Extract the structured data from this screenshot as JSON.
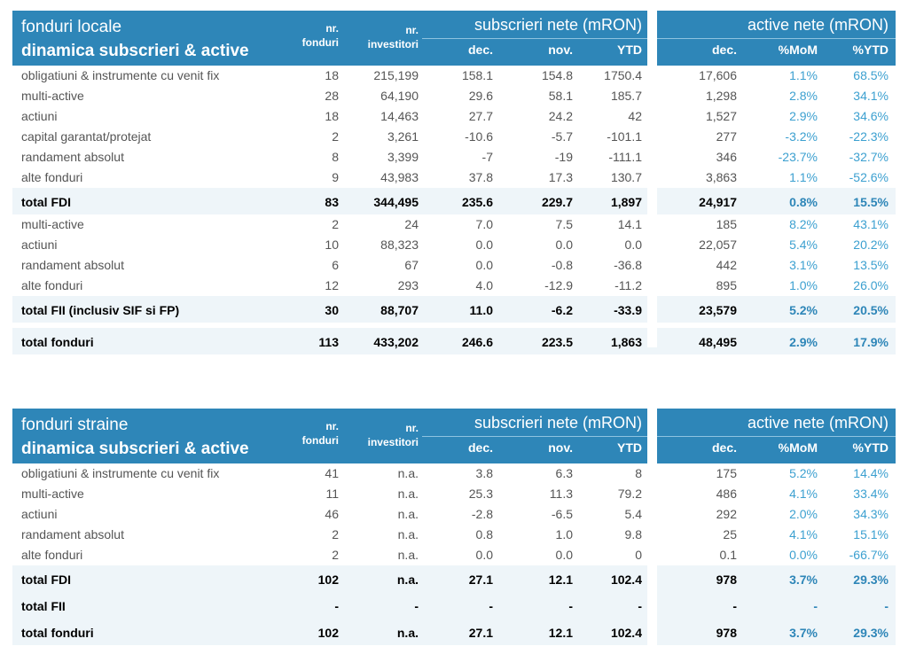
{
  "tables": [
    {
      "title1": "fonduri locale",
      "title2": "dinamica subscrieri & active",
      "col_nr_fonduri": [
        "nr.",
        "fonduri"
      ],
      "col_nr_investitori": [
        "nr.",
        "investitori"
      ],
      "group_subscrieri": "subscrieri nete (mRON)",
      "group_active": "active nete (mRON)",
      "sub_cols": [
        "dec.",
        "nov.",
        "YTD",
        "dec.",
        "%MoM",
        "%YTD"
      ],
      "rows": [
        {
          "label": "obligatiuni & instrumente cu venit fix",
          "v": [
            "18",
            "215,199",
            "158.1",
            "154.8",
            "1750.4",
            "17,606",
            "1.1%",
            "68.5%"
          ]
        },
        {
          "label": "multi-active",
          "v": [
            "28",
            "64,190",
            "29.6",
            "58.1",
            "185.7",
            "1,298",
            "2.8%",
            "34.1%"
          ]
        },
        {
          "label": "actiuni",
          "v": [
            "18",
            "14,463",
            "27.7",
            "24.2",
            "42",
            "1,527",
            "2.9%",
            "34.6%"
          ]
        },
        {
          "label": "capital garantat/protejat",
          "v": [
            "2",
            "3,261",
            "-10.6",
            "-5.7",
            "-101.1",
            "277",
            "-3.2%",
            "-22.3%"
          ]
        },
        {
          "label": "randament absolut",
          "v": [
            "8",
            "3,399",
            "-7",
            "-19",
            "-111.1",
            "346",
            "-23.7%",
            "-32.7%"
          ]
        },
        {
          "label": "alte fonduri",
          "v": [
            "9",
            "43,983",
            "37.8",
            "17.3",
            "130.7",
            "3,863",
            "1.1%",
            "-52.6%"
          ]
        },
        {
          "label": "total FDI",
          "total": true,
          "v": [
            "83",
            "344,495",
            "235.6",
            "229.7",
            "1,897",
            "24,917",
            "0.8%",
            "15.5%"
          ]
        },
        {
          "label": "multi-active",
          "v": [
            "2",
            "24",
            "7.0",
            "7.5",
            "14.1",
            "185",
            "8.2%",
            "43.1%"
          ]
        },
        {
          "label": "actiuni",
          "v": [
            "10",
            "88,323",
            "0.0",
            "0.0",
            "0.0",
            "22,057",
            "5.4%",
            "20.2%"
          ]
        },
        {
          "label": "randament absolut",
          "v": [
            "6",
            "67",
            "0.0",
            "-0.8",
            "-36.8",
            "442",
            "3.1%",
            "13.5%"
          ]
        },
        {
          "label": "alte fonduri",
          "v": [
            "12",
            "293",
            "4.0",
            "-12.9",
            "-11.2",
            "895",
            "1.0%",
            "26.0%"
          ]
        },
        {
          "label": "total FII (inclusiv SIF si FP)",
          "total": true,
          "v": [
            "30",
            "88,707",
            "11.0",
            "-6.2",
            "-33.9",
            "23,579",
            "5.2%",
            "20.5%"
          ]
        },
        {
          "label": "total fonduri",
          "total": true,
          "gap": true,
          "v": [
            "113",
            "433,202",
            "246.6",
            "223.5",
            "1,863",
            "48,495",
            "2.9%",
            "17.9%"
          ]
        }
      ]
    },
    {
      "title1": "fonduri straine",
      "title2": "dinamica subscrieri & active",
      "col_nr_fonduri": [
        "nr.",
        "fonduri"
      ],
      "col_nr_investitori": [
        "nr.",
        "investitori"
      ],
      "group_subscrieri": "subscrieri nete (mRON)",
      "group_active": "active nete (mRON)",
      "sub_cols": [
        "dec.",
        "nov.",
        "YTD",
        "dec.",
        "%MoM",
        "%YTD"
      ],
      "rows": [
        {
          "label": "obligatiuni & instrumente cu venit fix",
          "v": [
            "41",
            "n.a.",
            "3.8",
            "6.3",
            "8",
            "175",
            "5.2%",
            "14.4%"
          ]
        },
        {
          "label": "multi-active",
          "v": [
            "11",
            "n.a.",
            "25.3",
            "11.3",
            "79.2",
            "486",
            "4.1%",
            "33.4%"
          ]
        },
        {
          "label": "actiuni",
          "v": [
            "46",
            "n.a.",
            "-2.8",
            "-6.5",
            "5.4",
            "292",
            "2.0%",
            "34.3%"
          ]
        },
        {
          "label": "randament absolut",
          "v": [
            "2",
            "n.a.",
            "0.8",
            "1.0",
            "9.8",
            "25",
            "4.1%",
            "15.1%"
          ]
        },
        {
          "label": "alte fonduri",
          "v": [
            "2",
            "n.a.",
            "0.0",
            "0.0",
            "0",
            "0.1",
            "0.0%",
            "-66.7%"
          ]
        },
        {
          "label": "total FDI",
          "total": true,
          "v": [
            "102",
            "n.a.",
            "27.1",
            "12.1",
            "102.4",
            "978",
            "3.7%",
            "29.3%"
          ]
        },
        {
          "label": "total FII",
          "total": true,
          "v": [
            "-",
            "-",
            "-",
            "-",
            "-",
            "-",
            "-",
            "-"
          ]
        },
        {
          "label": "total fonduri",
          "total": true,
          "v": [
            "102",
            "n.a.",
            "27.1",
            "12.1",
            "102.4",
            "978",
            "3.7%",
            "29.3%"
          ]
        }
      ]
    }
  ]
}
